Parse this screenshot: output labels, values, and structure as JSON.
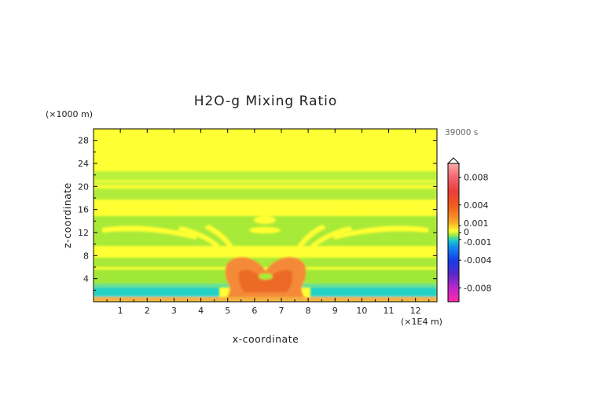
{
  "chart_data": {
    "type": "heatmap",
    "title": "H2O-g Mixing Ratio",
    "xlabel": "x-coordinate",
    "ylabel": "z-coordinate",
    "x_unit": "(×1E4 m)",
    "y_unit": "(×1000 m)",
    "time_label": "39000 s",
    "xlim": [
      0,
      12.8
    ],
    "ylim": [
      0,
      30
    ],
    "x_ticks": [
      1,
      2,
      3,
      4,
      5,
      6,
      7,
      8,
      9,
      10,
      11,
      12
    ],
    "y_ticks": [
      4,
      8,
      12,
      16,
      20,
      24,
      28
    ],
    "colorbar": {
      "range": [
        -0.01,
        0.01
      ],
      "labels": [
        {
          "value": 0.008,
          "text": "0.008"
        },
        {
          "value": 0.004,
          "text": "0.004"
        },
        {
          "value": 0.001,
          "text": "0.001"
        },
        {
          "value": 0,
          "text": "0"
        },
        {
          "value": -0.001,
          "text": "-0.001"
        },
        {
          "value": -0.004,
          "text": "-0.004"
        },
        {
          "value": -0.008,
          "text": "-0.008"
        }
      ]
    },
    "colors": {
      "background_field": "#ffff33",
      "weak_negative": "#a8f03a",
      "moderate_negative": "#1fd0c0",
      "positive_core": "#f07830",
      "positive_strong": "#e85020"
    }
  }
}
